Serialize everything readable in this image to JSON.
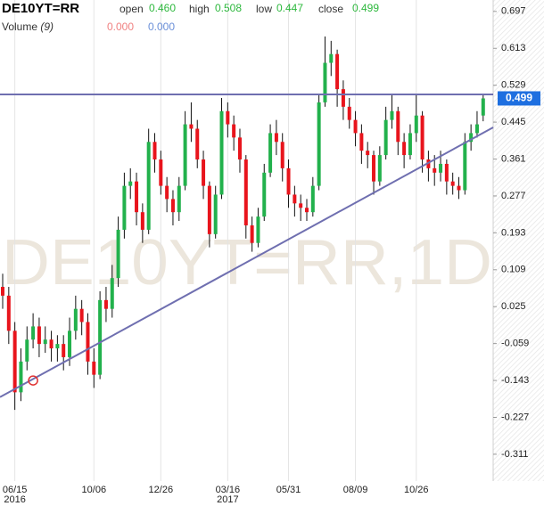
{
  "header": {
    "symbol": "DE10YT=RR",
    "fields": [
      {
        "label": "open",
        "value": "0.460"
      },
      {
        "label": "high",
        "value": "0.508"
      },
      {
        "label": "low",
        "value": "0.447"
      },
      {
        "label": "close",
        "value": "0.499"
      }
    ],
    "volume": {
      "label": "Volume",
      "param": "(9)",
      "values": [
        "0.000",
        "0.000"
      ]
    }
  },
  "chart_data": {
    "type": "candlestick",
    "watermark": "DE10YT=RR,1D",
    "categories": [
      null,
      null,
      "06/15",
      null,
      null,
      null,
      null,
      null,
      null,
      null,
      null,
      null,
      null,
      null,
      null,
      "10/06",
      null,
      null,
      null,
      null,
      null,
      null,
      null,
      null,
      null,
      null,
      "12/26",
      null,
      null,
      null,
      null,
      null,
      null,
      null,
      null,
      null,
      null,
      "03/16",
      null,
      null,
      null,
      null,
      null,
      null,
      null,
      null,
      null,
      "05/31",
      null,
      null,
      null,
      null,
      null,
      null,
      null,
      null,
      null,
      null,
      "08/09",
      null,
      null,
      null,
      null,
      null,
      null,
      null,
      null,
      null,
      "10/26",
      null,
      null,
      null,
      null,
      null,
      null,
      null,
      null,
      null,
      null,
      null
    ],
    "years": {
      "06/15": "2016",
      "03/16": "2017"
    },
    "open": [
      0.07,
      0.05,
      -0.03,
      -0.17,
      -0.1,
      -0.05,
      -0.02,
      -0.06,
      -0.05,
      -0.07,
      -0.06,
      -0.09,
      -0.03,
      0.02,
      -0.01,
      -0.1,
      -0.13,
      0.04,
      0.02,
      0.09,
      0.2,
      0.3,
      0.31,
      0.24,
      0.2,
      0.4,
      0.36,
      0.3,
      0.27,
      0.24,
      0.3,
      0.44,
      0.43,
      0.36,
      0.3,
      0.19,
      0.28,
      0.47,
      0.44,
      0.41,
      0.36,
      0.21,
      0.17,
      0.23,
      0.33,
      0.42,
      0.4,
      0.34,
      0.28,
      0.26,
      0.25,
      0.24,
      0.3,
      0.49,
      0.58,
      0.6,
      0.52,
      0.48,
      0.45,
      0.42,
      0.38,
      0.37,
      0.31,
      0.37,
      0.45,
      0.47,
      0.4,
      0.37,
      0.42,
      0.46,
      0.36,
      0.34,
      0.33,
      0.35,
      0.31,
      0.3,
      0.29,
      0.4,
      0.42,
      0.46
    ],
    "high": [
      0.1,
      0.07,
      -0.01,
      -0.07,
      -0.02,
      0.01,
      0.0,
      -0.02,
      -0.03,
      -0.04,
      -0.04,
      0.0,
      0.05,
      0.04,
      0.01,
      -0.07,
      0.06,
      0.07,
      0.12,
      0.23,
      0.33,
      0.34,
      0.33,
      0.26,
      0.43,
      0.42,
      0.38,
      0.32,
      0.29,
      0.32,
      0.47,
      0.49,
      0.45,
      0.38,
      0.31,
      0.3,
      0.5,
      0.49,
      0.46,
      0.43,
      0.37,
      0.23,
      0.25,
      0.35,
      0.44,
      0.45,
      0.42,
      0.36,
      0.3,
      0.28,
      0.27,
      0.32,
      0.51,
      0.64,
      0.63,
      0.61,
      0.54,
      0.5,
      0.47,
      0.44,
      0.4,
      0.38,
      0.39,
      0.48,
      0.51,
      0.48,
      0.42,
      0.44,
      0.51,
      0.47,
      0.38,
      0.37,
      0.38,
      0.36,
      0.33,
      0.32,
      0.42,
      0.44,
      0.47,
      0.508
    ],
    "low": [
      0.02,
      -0.06,
      -0.21,
      -0.19,
      -0.12,
      -0.07,
      -0.09,
      -0.08,
      -0.1,
      -0.1,
      -0.12,
      -0.11,
      -0.05,
      -0.04,
      -0.13,
      -0.16,
      -0.14,
      -0.01,
      0.0,
      0.07,
      0.18,
      0.27,
      0.21,
      0.17,
      0.19,
      0.33,
      0.28,
      0.24,
      0.21,
      0.22,
      0.29,
      0.4,
      0.34,
      0.27,
      0.16,
      0.18,
      0.27,
      0.41,
      0.38,
      0.33,
      0.18,
      0.15,
      0.16,
      0.22,
      0.32,
      0.37,
      0.31,
      0.25,
      0.23,
      0.22,
      0.22,
      0.23,
      0.29,
      0.48,
      0.55,
      0.48,
      0.45,
      0.43,
      0.39,
      0.35,
      0.34,
      0.28,
      0.3,
      0.36,
      0.43,
      0.37,
      0.34,
      0.36,
      0.4,
      0.33,
      0.31,
      0.3,
      0.31,
      0.28,
      0.28,
      0.27,
      0.28,
      0.38,
      0.41,
      0.447
    ],
    "close": [
      0.05,
      -0.03,
      -0.17,
      -0.1,
      -0.05,
      -0.02,
      -0.06,
      -0.05,
      -0.07,
      -0.06,
      -0.09,
      -0.03,
      0.02,
      -0.01,
      -0.1,
      -0.13,
      0.04,
      0.02,
      0.09,
      0.2,
      0.3,
      0.31,
      0.24,
      0.2,
      0.4,
      0.36,
      0.3,
      0.27,
      0.24,
      0.3,
      0.44,
      0.43,
      0.36,
      0.3,
      0.19,
      0.28,
      0.47,
      0.44,
      0.41,
      0.36,
      0.21,
      0.17,
      0.23,
      0.33,
      0.42,
      0.4,
      0.34,
      0.28,
      0.26,
      0.25,
      0.24,
      0.3,
      0.49,
      0.58,
      0.6,
      0.52,
      0.48,
      0.45,
      0.42,
      0.38,
      0.37,
      0.31,
      0.37,
      0.45,
      0.47,
      0.4,
      0.37,
      0.42,
      0.46,
      0.36,
      0.34,
      0.33,
      0.35,
      0.31,
      0.3,
      0.29,
      0.4,
      0.42,
      0.44,
      0.499
    ],
    "up_color": "#22b14c",
    "down_color": "#e8141c",
    "wick_color": "#111111",
    "ylim": [
      -0.372,
      0.723
    ],
    "yticks": [
      0.697,
      0.613,
      0.529,
      0.445,
      0.361,
      0.277,
      0.193,
      0.109,
      0.025,
      -0.059,
      -0.143,
      -0.227,
      -0.311
    ],
    "grid": true,
    "trendlines": [
      {
        "from": [
          -0.44,
          0.508
        ],
        "to": [
          80.65,
          0.508
        ],
        "color": "#6f6fb0"
      },
      {
        "from": [
          -0.44,
          -0.181
        ],
        "to": [
          80.65,
          0.433
        ],
        "color": "#6f6fb0"
      }
    ],
    "markers": [
      {
        "x": 5,
        "y": -0.143,
        "color": "#e03030"
      }
    ],
    "last_price_color": "#1e6fe0"
  }
}
